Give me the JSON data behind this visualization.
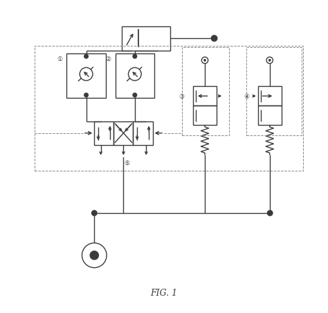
{
  "title": "FIG. 1",
  "bg_color": "#ffffff",
  "line_color": "#3a3a3a",
  "dashed_color": "#888888",
  "figsize": [
    4.74,
    4.52
  ],
  "dpi": 100,
  "xlim": [
    0,
    10
  ],
  "ylim": [
    0,
    9.5
  ]
}
